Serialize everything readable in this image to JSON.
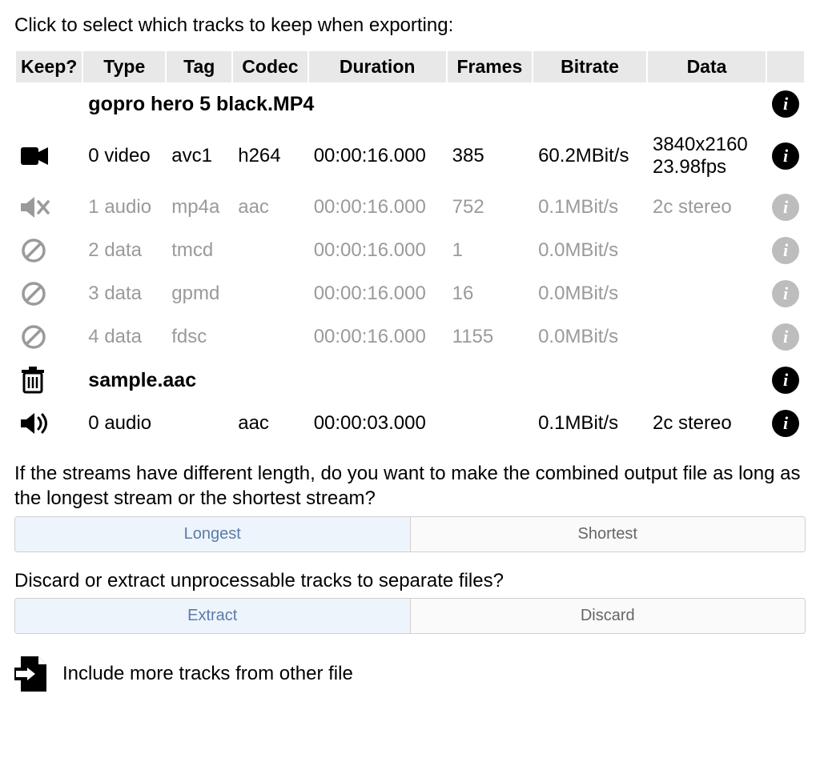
{
  "instruction": "Click to select which tracks to keep when exporting:",
  "columns": {
    "keep": "Keep?",
    "type": "Type",
    "tag": "Tag",
    "codec": "Codec",
    "duration": "Duration",
    "frames": "Frames",
    "bitrate": "Bitrate",
    "data": "Data"
  },
  "files": [
    {
      "name": "gopro hero 5 black.MP4",
      "icon": "none",
      "tracks": [
        {
          "enabled": true,
          "icon": "video",
          "index": "0",
          "type": "video",
          "tag": "avc1",
          "codec": "h264",
          "duration": "00:00:16.000",
          "frames": "385",
          "bitrate": "60.2MBit/s",
          "data1": "3840x2160",
          "data2": "23.98fps"
        },
        {
          "enabled": false,
          "icon": "audio-mute",
          "index": "1",
          "type": "audio",
          "tag": "mp4a",
          "codec": "aac",
          "duration": "00:00:16.000",
          "frames": "752",
          "bitrate": "0.1MBit/s",
          "data1": "2c stereo",
          "data2": ""
        },
        {
          "enabled": false,
          "icon": "ban",
          "index": "2",
          "type": "data",
          "tag": "tmcd",
          "codec": "",
          "duration": "00:00:16.000",
          "frames": "1",
          "bitrate": "0.0MBit/s",
          "data1": "",
          "data2": ""
        },
        {
          "enabled": false,
          "icon": "ban",
          "index": "3",
          "type": "data",
          "tag": "gpmd",
          "codec": "",
          "duration": "00:00:16.000",
          "frames": "16",
          "bitrate": "0.0MBit/s",
          "data1": "",
          "data2": ""
        },
        {
          "enabled": false,
          "icon": "ban",
          "index": "4",
          "type": "data",
          "tag": "fdsc",
          "codec": "",
          "duration": "00:00:16.000",
          "frames": "1155",
          "bitrate": "0.0MBit/s",
          "data1": "",
          "data2": ""
        }
      ]
    },
    {
      "name": "sample.aac",
      "icon": "trash",
      "tracks": [
        {
          "enabled": true,
          "icon": "audio-on",
          "index": "0",
          "type": "audio",
          "tag": "",
          "codec": "aac",
          "duration": "00:00:03.000",
          "frames": "",
          "bitrate": "0.1MBit/s",
          "data1": "2c stereo",
          "data2": ""
        }
      ]
    }
  ],
  "length_question": "If the streams have different length, do you want to make the combined output file as long as the longest stream or the shortest stream?",
  "length_options": {
    "longest": "Longest",
    "shortest": "Shortest",
    "selected": "longest"
  },
  "discard_question": "Discard or extract unprocessable tracks to separate files?",
  "discard_options": {
    "extract": "Extract",
    "discard": "Discard",
    "selected": "extract"
  },
  "include_more": "Include more tracks from other file",
  "colors": {
    "header_bg": "#e8e8e8",
    "disabled_text": "#9a9a9a",
    "toggle_selected_bg": "#eef4fb",
    "toggle_selected_fg": "#5a7ca8",
    "toggle_border": "#cfcfcf",
    "info_dark": "#000000",
    "info_light": "#bdbdbd"
  }
}
